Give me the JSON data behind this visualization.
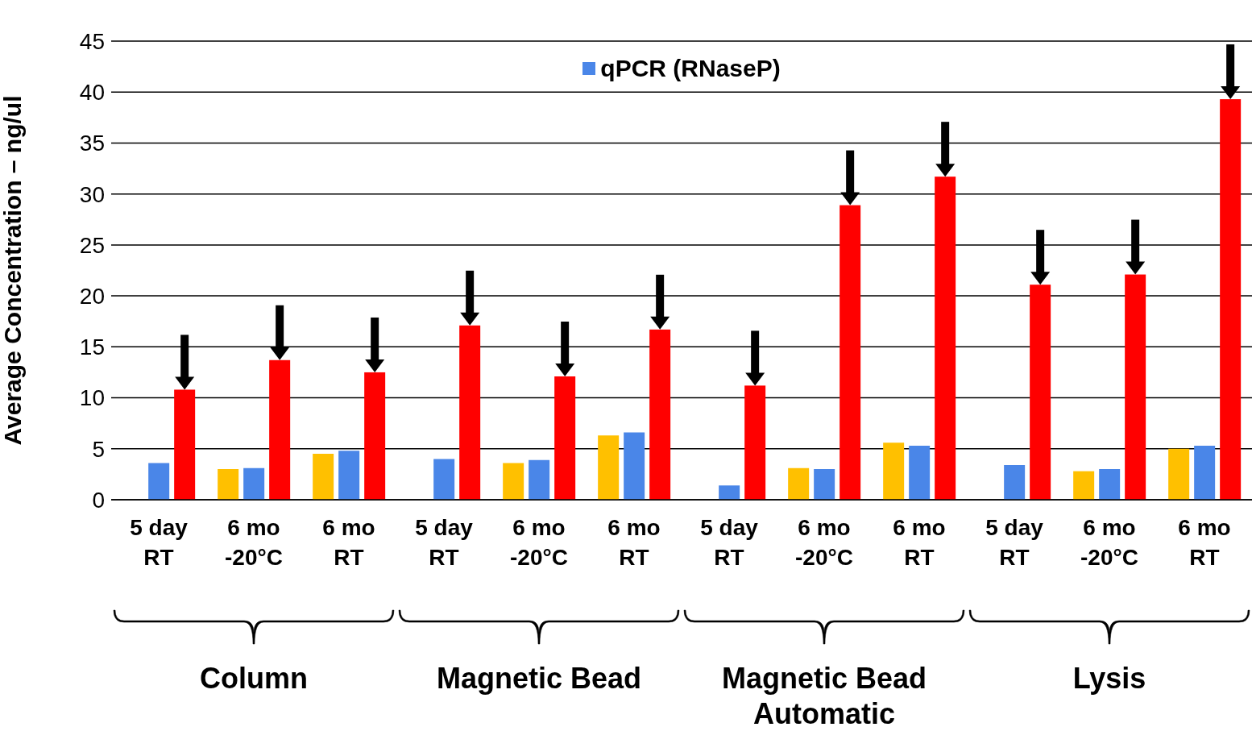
{
  "chart_data": {
    "type": "bar",
    "ylabel": "Average Concentration – ng/ul",
    "categories": [
      "5 day\nRT",
      "6 mo\n-20°C",
      "6 mo\nRT",
      "5 day\nRT",
      "6 mo\n-20°C",
      "6 mo\nRT",
      "5 day\nRT",
      "6 mo\n-20°C",
      "6 mo\nRT",
      "5 day\nRT",
      "6 mo\n-20°C",
      "6 mo\nRT"
    ],
    "series": [
      {
        "color": "#ffc000",
        "values": [
          null,
          3.0,
          4.5,
          null,
          3.6,
          6.3,
          null,
          3.1,
          5.6,
          null,
          2.8,
          5.0
        ]
      },
      {
        "name": "qPCR (RNaseP)",
        "color": "#4a86e8",
        "values": [
          3.6,
          3.1,
          4.8,
          4.0,
          3.9,
          6.6,
          1.4,
          3.0,
          5.3,
          3.4,
          3.0,
          5.3
        ]
      },
      {
        "color": "#ff0000",
        "values": [
          10.8,
          13.7,
          12.5,
          17.1,
          12.1,
          16.7,
          11.2,
          28.9,
          31.7,
          21.1,
          22.1,
          39.3
        ]
      }
    ],
    "annotations": [
      "Column",
      "Magnetic Bead",
      "Magnetic Bead Automatic",
      "Lysis"
    ],
    "ylim": [
      0,
      45
    ],
    "yticks": [
      0,
      5,
      10,
      15,
      20,
      25,
      30,
      35,
      40,
      45
    ],
    "grid": "y",
    "legend": "top"
  }
}
